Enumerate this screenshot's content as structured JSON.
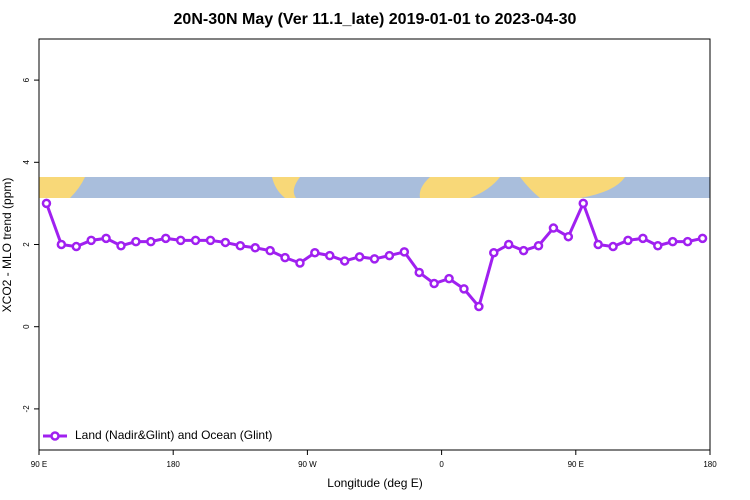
{
  "chart_data": {
    "type": "line",
    "title": "20N-30N May (Ver 11.1_late)   2019-01-01 to 2023-04-30",
    "x_label": "Longitude (deg E)",
    "y_label": "XCO2 - MLO trend (ppm)",
    "x": [
      95,
      105,
      115,
      125,
      135,
      145,
      155,
      165,
      175,
      185,
      195,
      205,
      215,
      225,
      235,
      245,
      255,
      265,
      275,
      285,
      295,
      305,
      315,
      325,
      335,
      345,
      355,
      365,
      375,
      385,
      395,
      405,
      415,
      425,
      435,
      445,
      455,
      465,
      475,
      485,
      495,
      505,
      515,
      525,
      535
    ],
    "series": [
      {
        "name": "Land (Nadir&Glint) and Ocean (Glint)",
        "color": "#a020f0",
        "values": [
          3.0,
          2.0,
          1.95,
          2.1,
          2.15,
          1.97,
          2.07,
          2.07,
          2.15,
          2.1,
          2.1,
          2.1,
          2.05,
          1.97,
          1.92,
          1.85,
          1.68,
          1.55,
          1.8,
          1.73,
          1.6,
          1.7,
          1.65,
          1.73,
          1.82,
          1.32,
          1.05,
          1.17,
          0.92,
          0.49,
          1.8,
          2.0,
          1.85,
          1.97,
          2.4,
          2.19,
          3.0,
          2.0,
          1.95,
          2.1,
          2.15,
          1.97,
          2.07,
          2.07,
          2.15
        ]
      }
    ],
    "xlim": [
      90,
      540
    ],
    "xticks": [
      {
        "value": 90,
        "label": "90 E"
      },
      180,
      {
        "value": 270,
        "label": "90 W"
      },
      {
        "value": 360,
        "label": "0"
      },
      {
        "value": 450,
        "label": "90 E"
      },
      {
        "value": 540,
        "label": "180"
      }
    ],
    "ylim": [
      -3,
      7
    ],
    "yticks": [
      -2,
      0,
      2,
      4,
      6
    ],
    "legend": "bottom-left"
  }
}
